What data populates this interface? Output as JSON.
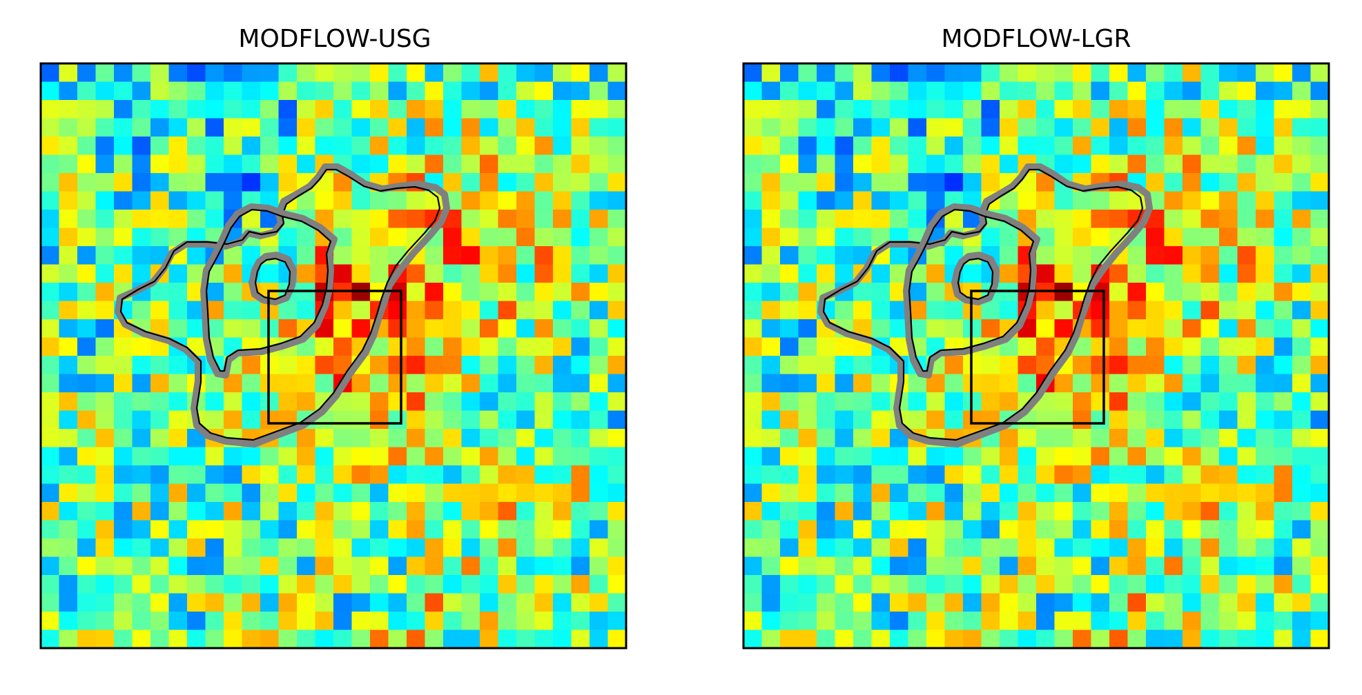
{
  "figure": {
    "background": "#ffffff",
    "colormap": "jet"
  },
  "chart_data": [
    {
      "type": "heatmap",
      "title": "MODFLOW-USG",
      "xlabel": "",
      "ylabel": "",
      "grid": false,
      "axes_ticks": false,
      "rows": 32,
      "cols": 32,
      "value_range": [
        0,
        1
      ],
      "overlays": [
        "model head contours (gray)",
        "reference contours (black)",
        "refined-grid box (black)"
      ]
    },
    {
      "type": "heatmap",
      "title": "MODFLOW-LGR",
      "xlabel": "",
      "ylabel": "",
      "grid": false,
      "axes_ticks": false,
      "rows": 32,
      "cols": 32,
      "value_range": [
        0,
        1
      ],
      "overlays": [
        "model head contours (gray)",
        "reference contours (black)",
        "refined-grid box (black)"
      ]
    }
  ],
  "colors": {
    "model_contour": "#808080",
    "reference_contour": "#000000",
    "frame": "#000000"
  }
}
